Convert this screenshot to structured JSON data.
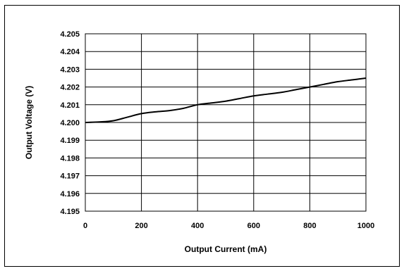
{
  "chart_data": {
    "type": "line",
    "title": "",
    "xlabel": "Output Current (mA)",
    "ylabel": "Output Voltage (V)",
    "xlim": [
      0,
      1000
    ],
    "ylim": [
      4.195,
      4.205
    ],
    "x_ticks": [
      "0",
      "200",
      "400",
      "600",
      "800",
      "1000"
    ],
    "y_ticks": [
      "4.205",
      "4.204",
      "4.203",
      "4.202",
      "4.201",
      "4.200",
      "4.199",
      "4.198",
      "4.197",
      "4.196",
      "4.195"
    ],
    "grid": true,
    "colors": {
      "line": "#000000",
      "grid": "#000000"
    },
    "series": [
      {
        "x": [
          0,
          50,
          100,
          150,
          200,
          250,
          300,
          350,
          400,
          450,
          500,
          550,
          600,
          650,
          700,
          750,
          800,
          850,
          900,
          950,
          1000
        ],
        "y": [
          4.2,
          4.20003,
          4.2001,
          4.2003,
          4.2005,
          4.2006,
          4.20067,
          4.2008,
          4.201,
          4.2011,
          4.2012,
          4.20135,
          4.2015,
          4.2016,
          4.2017,
          4.20185,
          4.202,
          4.20215,
          4.2023,
          4.2024,
          4.2025
        ]
      }
    ]
  }
}
